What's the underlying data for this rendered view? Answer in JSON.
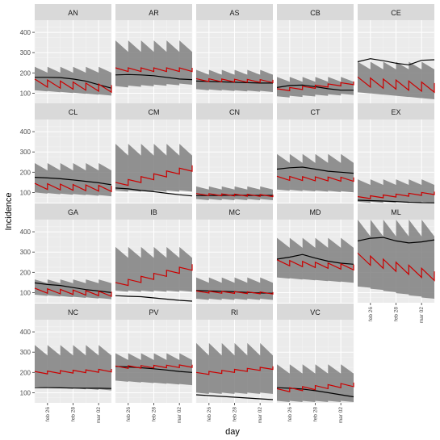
{
  "chart_data": {
    "type": "line",
    "facet_layout": {
      "ncol": 5,
      "nrow": 4
    },
    "xlabel": "day",
    "ylabel": "Incidence",
    "xlim": [
      0,
      6
    ],
    "ylim": [
      50,
      460
    ],
    "y_ticks": [
      100,
      200,
      300,
      400
    ],
    "x_ticks": [
      {
        "pos": 1,
        "label": "feb 26"
      },
      {
        "pos": 3,
        "label": "feb 28"
      },
      {
        "pos": 5,
        "label": "mar 02"
      }
    ],
    "grid": true,
    "x_days": [
      0,
      1,
      2,
      3,
      4,
      5,
      6
    ],
    "series_styles": {
      "observed": {
        "color": "#000000"
      },
      "forecast": {
        "color": "#cc0000"
      },
      "interval": {
        "color": "#808080"
      }
    },
    "panels": [
      {
        "name": "AN",
        "observed": [
          178,
          178,
          177,
          170,
          160,
          142,
          125
        ],
        "forecast": {
          "start": 170,
          "step_down": 40,
          "jump": 25,
          "trend": -5
        },
        "interval": {
          "lower": 115,
          "upper": 230,
          "tail": 90
        }
      },
      {
        "name": "AR",
        "observed": [
          190,
          192,
          190,
          186,
          178,
          170,
          167
        ],
        "forecast": {
          "start": 225,
          "step_down": 18,
          "jump": 18,
          "trend": 0
        },
        "interval": {
          "lower": 135,
          "upper": 360,
          "tail": 150
        }
      },
      {
        "name": "AS",
        "observed": [
          160,
          158,
          156,
          154,
          152,
          150,
          150
        ],
        "forecast": {
          "start": 172,
          "step_down": 15,
          "jump": 12,
          "trend": -1
        },
        "interval": {
          "lower": 120,
          "upper": 215,
          "tail": 110
        }
      },
      {
        "name": "CB",
        "observed": [
          128,
          138,
          140,
          132,
          122,
          115,
          115
        ],
        "forecast": {
          "start": 122,
          "step_down": 10,
          "jump": 25,
          "trend": 6
        },
        "interval": {
          "lower": 85,
          "upper": 180,
          "tail": 100
        }
      },
      {
        "name": "CE",
        "observed": [
          255,
          270,
          260,
          248,
          240,
          262,
          265
        ],
        "forecast": {
          "start": 180,
          "step_down": 50,
          "jump": 35,
          "trend": -5
        },
        "interval": {
          "lower": 105,
          "upper": 255,
          "tail": 70
        }
      },
      {
        "name": "CL",
        "observed": [
          175,
          172,
          168,
          162,
          155,
          148,
          138
        ],
        "forecast": {
          "start": 145,
          "step_down": 30,
          "jump": 25,
          "trend": -2
        },
        "interval": {
          "lower": 100,
          "upper": 245,
          "tail": 85
        }
      },
      {
        "name": "CM",
        "observed": [
          122,
          118,
          110,
          104,
          96,
          89,
          83
        ],
        "forecast": {
          "start": 150,
          "step_down": 15,
          "jump": 35,
          "trend": 14
        },
        "interval": {
          "lower": 110,
          "upper": 340,
          "tail": 110
        }
      },
      {
        "name": "CN",
        "observed": [
          85,
          85,
          86,
          87,
          86,
          86,
          86
        ],
        "forecast": {
          "start": 95,
          "step_down": 10,
          "jump": 8,
          "trend": -1
        },
        "interval": {
          "lower": 68,
          "upper": 130,
          "tail": 68
        }
      },
      {
        "name": "CT",
        "observed": [
          215,
          222,
          225,
          215,
          205,
          200,
          195
        ],
        "forecast": {
          "start": 180,
          "step_down": 20,
          "jump": 18,
          "trend": -1
        },
        "interval": {
          "lower": 115,
          "upper": 290,
          "tail": 105
        }
      },
      {
        "name": "EX",
        "observed": [
          62,
          60,
          58,
          55,
          52,
          50,
          49
        ],
        "forecast": {
          "start": 80,
          "step_down": 10,
          "jump": 12,
          "trend": 4
        },
        "interval": {
          "lower": 55,
          "upper": 165,
          "tail": 55
        }
      },
      {
        "name": "GA",
        "observed": [
          148,
          140,
          135,
          125,
          115,
          108,
          100
        ],
        "forecast": {
          "start": 122,
          "step_down": 25,
          "jump": 20,
          "trend": -3
        },
        "interval": {
          "lower": 90,
          "upper": 165,
          "tail": 70
        }
      },
      {
        "name": "IB",
        "observed": [
          85,
          82,
          80,
          74,
          68,
          62,
          58
        ],
        "forecast": {
          "start": 150,
          "step_down": 15,
          "jump": 40,
          "trend": 15
        },
        "interval": {
          "lower": 110,
          "upper": 325,
          "tail": 110
        }
      },
      {
        "name": "MC",
        "observed": [
          110,
          108,
          106,
          104,
          101,
          98,
          97
        ],
        "forecast": {
          "start": 108,
          "step_down": 10,
          "jump": 10,
          "trend": -1
        },
        "interval": {
          "lower": 70,
          "upper": 175,
          "tail": 70
        }
      },
      {
        "name": "MD",
        "observed": [
          265,
          275,
          288,
          270,
          255,
          245,
          240
        ],
        "forecast": {
          "start": 262,
          "step_down": 30,
          "jump": 25,
          "trend": -4
        },
        "interval": {
          "lower": 175,
          "upper": 370,
          "tail": 150
        }
      },
      {
        "name": "ML",
        "observed": [
          355,
          368,
          372,
          355,
          345,
          350,
          360
        ],
        "forecast": {
          "start": 295,
          "step_down": 60,
          "jump": 45,
          "trend": -15
        },
        "interval": {
          "lower": 130,
          "upper": 460,
          "tail": 65
        }
      },
      {
        "name": "NC",
        "observed": [
          125,
          125,
          124,
          123,
          122,
          122,
          121
        ],
        "forecast": {
          "start": 205,
          "step_down": 12,
          "jump": 14,
          "trend": 2
        },
        "interval": {
          "lower": 130,
          "upper": 335,
          "tail": 115
        }
      },
      {
        "name": "PV",
        "observed": [
          230,
          227,
          223,
          218,
          212,
          205,
          200
        ],
        "forecast": {
          "start": 232,
          "step_down": 12,
          "jump": 14,
          "trend": 1
        },
        "interval": {
          "lower": 160,
          "upper": 295,
          "tail": 140
        }
      },
      {
        "name": "RI",
        "observed": [
          90,
          86,
          82,
          78,
          74,
          70,
          66
        ],
        "forecast": {
          "start": 200,
          "step_down": 10,
          "jump": 15,
          "trend": 5
        },
        "interval": {
          "lower": 100,
          "upper": 345,
          "tail": 100
        }
      },
      {
        "name": "VC",
        "observed": [
          125,
          122,
          118,
          110,
          100,
          90,
          80
        ],
        "forecast": {
          "start": 120,
          "step_down": 15,
          "jump": 20,
          "trend": 5
        },
        "interval": {
          "lower": 60,
          "upper": 240,
          "tail": 60
        }
      }
    ]
  }
}
